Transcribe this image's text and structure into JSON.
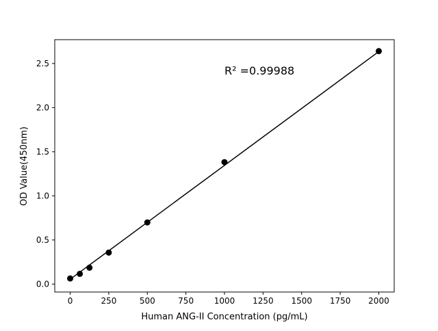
{
  "chart_data": {
    "type": "scatter",
    "title": "",
    "xlabel": "Human ANG-II Concentration (pg/mL)",
    "ylabel": "OD Value(450nm)",
    "xlim": [
      -100,
      2100
    ],
    "ylim": [
      -0.09,
      2.77
    ],
    "xticks": [
      0,
      250,
      500,
      750,
      1000,
      1250,
      1500,
      1750,
      2000
    ],
    "yticks": [
      0.0,
      0.5,
      1.0,
      1.5,
      2.0,
      2.5
    ],
    "xtick_labels": [
      "0",
      "250",
      "500",
      "750",
      "1000",
      "1250",
      "1500",
      "1750",
      "2000"
    ],
    "ytick_labels": [
      "0.0",
      "0.5",
      "1.0",
      "1.5",
      "2.0",
      "2.5"
    ],
    "grid": false,
    "points": {
      "x": [
        0,
        62.5,
        125,
        250,
        500,
        1000,
        2000
      ],
      "y": [
        0.064,
        0.116,
        0.186,
        0.357,
        0.699,
        1.382,
        2.64
      ]
    },
    "fit_line": {
      "type": "linear",
      "x_range": [
        0,
        2000
      ],
      "y_range": [
        0.055,
        2.635
      ]
    },
    "annotation": "R² =0.99988",
    "colors": {
      "points": "#000000",
      "line": "#000000"
    }
  }
}
